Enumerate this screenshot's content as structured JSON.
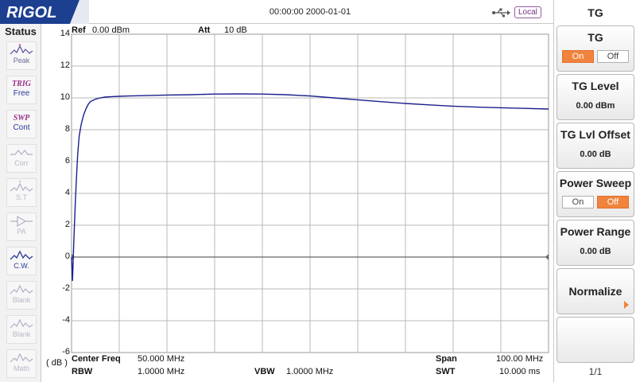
{
  "brand": "RIGOL",
  "datetime": "00:00:00 2000-01-01",
  "remote_status": "Local",
  "status_panel": {
    "title": "Status",
    "items": [
      {
        "name": "status-peak",
        "icon": "peak-wave-icon",
        "tag": "",
        "label": "Peak",
        "state": "normal"
      },
      {
        "name": "status-trig",
        "icon": "",
        "tag": "TRIG",
        "label": "Free",
        "state": "active"
      },
      {
        "name": "status-swp",
        "icon": "",
        "tag": "SWP",
        "label": "Cont",
        "state": "active"
      },
      {
        "name": "status-corr",
        "icon": "corr-icon",
        "tag": "",
        "label": "Corr",
        "state": "disabled"
      },
      {
        "name": "status-st",
        "icon": "signal-track-icon",
        "tag": "",
        "label": "S.T",
        "state": "disabled"
      },
      {
        "name": "status-pa",
        "icon": "preamp-icon",
        "tag": "",
        "label": "PA",
        "state": "disabled"
      },
      {
        "name": "status-cw",
        "icon": "cw-wave-icon",
        "tag": "",
        "label": "C.W.",
        "state": "active"
      },
      {
        "name": "status-blank-1",
        "icon": "blank-wave-icon",
        "tag": "",
        "label": "Blank",
        "state": "disabled"
      },
      {
        "name": "status-blank-2",
        "icon": "blank-wave-icon",
        "tag": "",
        "label": "Blank",
        "state": "disabled"
      },
      {
        "name": "status-math",
        "icon": "math-wave-icon",
        "tag": "",
        "label": "Math",
        "state": "disabled"
      }
    ]
  },
  "plot_header": {
    "ref_label": "Ref",
    "ref_value": "0.00 dBm",
    "att_label": "Att",
    "att_value": "10 dB"
  },
  "y_unit": "( dB )",
  "plot_footer": {
    "center_freq_label": "Center Freq",
    "center_freq_value": "50.000 MHz",
    "span_label": "Span",
    "span_value": "100.00 MHz",
    "rbw_label": "RBW",
    "rbw_value": "1.0000 MHz",
    "vbw_label": "VBW",
    "vbw_value": "1.0000 MHz",
    "swt_label": "SWT",
    "swt_value": "10.000 ms"
  },
  "chart_data": {
    "type": "line",
    "title": "",
    "xlabel": "",
    "ylabel": "( dB )",
    "xlim": [
      0,
      100
    ],
    "ylim": [
      -6,
      14
    ],
    "yticks": [
      14,
      12,
      10,
      8,
      6,
      4,
      2,
      0,
      -2,
      -4,
      -6
    ],
    "grid": true,
    "series": [
      {
        "color": "#1a1f8c",
        "x": [
          0,
          0.2,
          0.5,
          0.8,
          1.0,
          1.3,
          1.6,
          2.0,
          2.5,
          3.0,
          3.5,
          4.0,
          5.0,
          6.0,
          7.0,
          8.5,
          10,
          12,
          15,
          20,
          25,
          30,
          35,
          40,
          45,
          50,
          55,
          60,
          65,
          70,
          75,
          80,
          85,
          90,
          95,
          100
        ],
        "values": [
          0.0,
          -1.5,
          1.2,
          3.5,
          4.8,
          6.5,
          7.6,
          8.3,
          8.9,
          9.3,
          9.6,
          9.78,
          9.92,
          10.0,
          10.05,
          10.08,
          10.1,
          10.12,
          10.14,
          10.18,
          10.2,
          10.24,
          10.25,
          10.24,
          10.2,
          10.12,
          10.0,
          9.88,
          9.76,
          9.65,
          9.56,
          9.48,
          9.42,
          9.38,
          9.34,
          9.3
        ]
      }
    ],
    "reference_line": 0
  },
  "menu": {
    "title": "TG",
    "tg": {
      "label": "TG",
      "on": "On",
      "off": "Off",
      "selected": "on"
    },
    "tg_level": {
      "label": "TG Level",
      "value": "0.00 dBm"
    },
    "tg_lvl_offset": {
      "label": "TG Lvl Offset",
      "value": "0.00 dB"
    },
    "power_sweep": {
      "label": "Power Sweep",
      "on": "On",
      "off": "Off",
      "selected": "off"
    },
    "power_range": {
      "label": "Power Range",
      "value": "0.00 dB"
    },
    "normalize": {
      "label": "Normalize"
    },
    "page": "1/1"
  },
  "colors": {
    "trace": "#1a1f8c",
    "accent": "#f0843c",
    "grid": "#b8b8b8",
    "brand_bg": "#1c3f8f"
  }
}
